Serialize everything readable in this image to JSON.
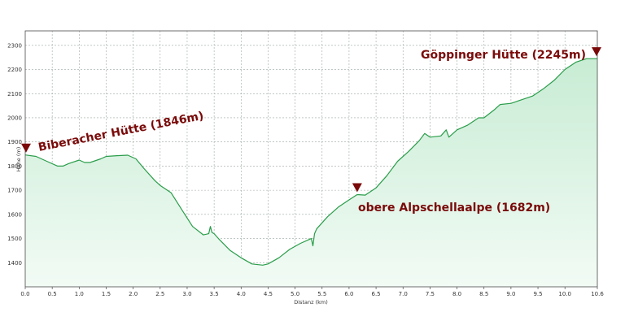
{
  "chart_data": {
    "type": "area",
    "xlabel": "Distanz  (km)",
    "ylabel": "Höhe (m)",
    "xlim": [
      0,
      10.6
    ],
    "ylim": [
      1300,
      2360
    ],
    "x_ticks": [
      0,
      0.5,
      1,
      1.5,
      2,
      2.5,
      3,
      3.5,
      4,
      4.5,
      5,
      5.5,
      6,
      6.5,
      7,
      7.5,
      8,
      8.5,
      9,
      9.5,
      10,
      10.6
    ],
    "x_tick_labels": [
      "0.0",
      "0.5",
      "1.0",
      "1.5",
      "2.0",
      "2.5",
      "3.0",
      "3.5",
      "4.0",
      "4.5",
      "5.0",
      "5.5",
      "6.0",
      "6.5",
      "7.0",
      "7.5",
      "8.0",
      "8.5",
      "9.0",
      "9.5",
      "10.0",
      "10.6"
    ],
    "y_ticks": [
      1400,
      1500,
      1600,
      1700,
      1800,
      1900,
      2000,
      2100,
      2200,
      2300
    ],
    "y_tick_labels": [
      "1400",
      "1500",
      "1600",
      "1700",
      "1800",
      "1900",
      "2000",
      "2100",
      "2200",
      "2300"
    ],
    "grid": true,
    "colors": {
      "line": "#2a9d4a",
      "fill_top": "#c8ecd4",
      "fill_bottom": "#f2fbf5",
      "marker": "#7a0a0a",
      "annotation": "#7a0a0a"
    },
    "x": [
      0,
      0.2,
      0.4,
      0.6,
      0.7,
      0.8,
      1.0,
      1.1,
      1.2,
      1.4,
      1.5,
      1.7,
      1.9,
      2.05,
      2.2,
      2.4,
      2.5,
      2.7,
      2.9,
      3.1,
      3.3,
      3.4,
      3.43,
      3.46,
      3.5,
      3.6,
      3.8,
      4.0,
      4.2,
      4.4,
      4.5,
      4.7,
      4.9,
      5.1,
      5.3,
      5.33,
      5.36,
      5.4,
      5.6,
      5.8,
      6.0,
      6.15,
      6.3,
      6.5,
      6.7,
      6.9,
      7.1,
      7.3,
      7.4,
      7.5,
      7.7,
      7.8,
      7.85,
      8.0,
      8.2,
      8.4,
      8.5,
      8.7,
      8.8,
      9.0,
      9.2,
      9.4,
      9.6,
      9.8,
      10.0,
      10.2,
      10.4,
      10.6
    ],
    "y": [
      1846,
      1840,
      1820,
      1800,
      1800,
      1810,
      1825,
      1815,
      1815,
      1830,
      1840,
      1843,
      1845,
      1830,
      1790,
      1740,
      1720,
      1690,
      1620,
      1550,
      1515,
      1520,
      1550,
      1525,
      1520,
      1495,
      1450,
      1420,
      1395,
      1390,
      1395,
      1420,
      1455,
      1480,
      1500,
      1470,
      1520,
      1540,
      1590,
      1630,
      1660,
      1682,
      1680,
      1710,
      1760,
      1820,
      1860,
      1905,
      1935,
      1920,
      1925,
      1950,
      1920,
      1950,
      1970,
      2000,
      2000,
      2035,
      2055,
      2060,
      2075,
      2090,
      2120,
      2155,
      2200,
      2230,
      2245,
      2245
    ],
    "annotations": [
      {
        "label": "Biberacher Hütte (1846m)",
        "x": 0,
        "y": 1846
      },
      {
        "label": "obere Alpschellaalpe  (1682m)",
        "x": 6.15,
        "y": 1682
      },
      {
        "label": "Göppinger Hütte (2245m)",
        "x": 10.6,
        "y": 2245
      }
    ]
  }
}
